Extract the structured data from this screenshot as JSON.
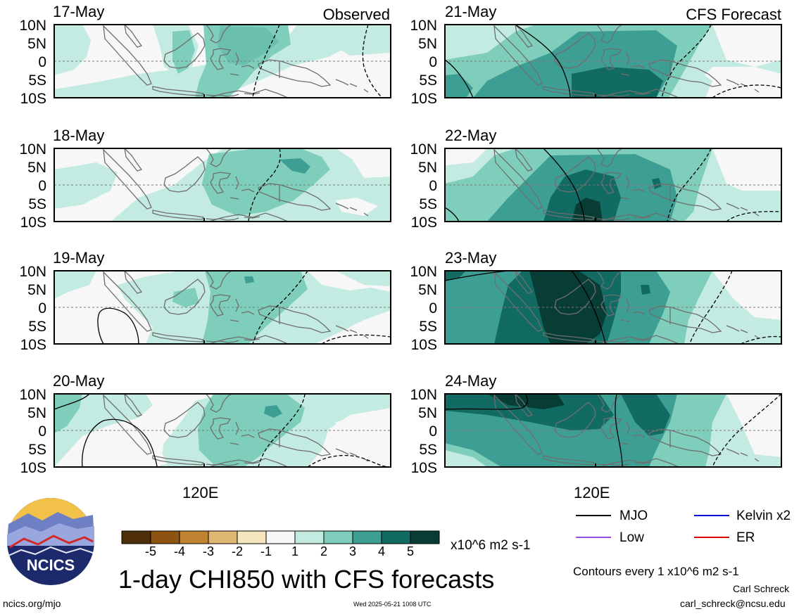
{
  "panels": [
    {
      "date": "17-May",
      "header": "Observed",
      "column": "observed"
    },
    {
      "date": "18-May",
      "header": "",
      "column": "observed"
    },
    {
      "date": "19-May",
      "header": "",
      "column": "observed"
    },
    {
      "date": "20-May",
      "header": "",
      "column": "observed"
    },
    {
      "date": "21-May",
      "header": "CFS Forecast",
      "column": "forecast"
    },
    {
      "date": "22-May",
      "header": "",
      "column": "forecast"
    },
    {
      "date": "23-May",
      "header": "",
      "column": "forecast"
    },
    {
      "date": "24-May",
      "header": "",
      "column": "forecast"
    }
  ],
  "lat_labels": [
    "10N",
    "5N",
    "0",
    "5S",
    "10S"
  ],
  "lon_label": "120E",
  "colorbar": {
    "ticks": [
      "-5",
      "-4",
      "-3",
      "-2",
      "-1",
      "1",
      "2",
      "3",
      "4",
      "5"
    ],
    "colors": [
      "#4d2e08",
      "#8c5410",
      "#bf8230",
      "#deb870",
      "#f5e6bd",
      "#f7f7f7",
      "#c4ebe1",
      "#7fcdbb",
      "#3d9f94",
      "#116b62",
      "#083d35"
    ],
    "units": "x10^6 m2 s-1"
  },
  "legend": {
    "mjo": {
      "label": "MJO",
      "color": "#000000"
    },
    "kelvin": {
      "label": "Kelvin x2",
      "color": "#0000dd"
    },
    "low": {
      "label": "Low",
      "color": "#9b4fe0"
    },
    "er": {
      "label": "ER",
      "color": "#dd0000"
    }
  },
  "title": "1-day CHI850 with CFS forecasts",
  "contour_note": "Contours every 1 x10^6 m2 s-1",
  "author": "Carl Schreck",
  "email": "carl_schreck@ncsu.edu",
  "website": "ncics.org/mjo",
  "timestamp": "Wed 2025-05-21 1008 UTC",
  "logo_text": "NCICS"
}
